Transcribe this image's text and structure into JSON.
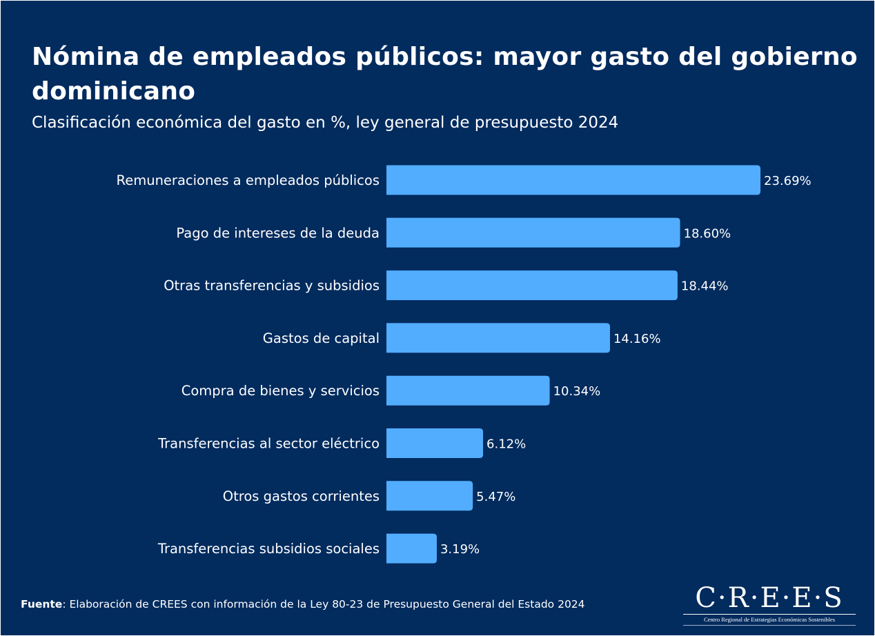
{
  "header": {
    "title": "Nómina de empleados públicos: mayor gasto del gobierno dominicano",
    "subtitle": "Clasificación económica del gasto en %, ley general de presupuesto 2024"
  },
  "chart_data": {
    "type": "bar",
    "orientation": "horizontal",
    "title": "Nómina de empleados públicos: mayor gasto del gobierno dominicano",
    "subtitle": "Clasificación económica del gasto en %, ley general de presupuesto 2024",
    "xlabel": "",
    "ylabel": "",
    "unit": "%",
    "grid": false,
    "legend": "none",
    "categories": [
      "Remuneraciones a empleados públicos",
      "Pago de intereses de la deuda",
      "Otras transferencias y subsidios",
      "Gastos de capital",
      "Compra de bienes y servicios",
      "Transferencias al sector eléctrico",
      "Otros gastos corrientes",
      "Transferencias subsidios sociales"
    ],
    "values": [
      23.69,
      18.6,
      18.44,
      14.16,
      10.34,
      6.12,
      5.47,
      3.19
    ],
    "value_labels": [
      "23.69%",
      "18.60%",
      "18.44%",
      "14.16%",
      "10.34%",
      "6.12%",
      "5.47%",
      "3.19%"
    ],
    "xlim": [
      0,
      23.69
    ],
    "colors": {
      "bar": "#52adff",
      "background": "#022b5e",
      "text": "#ffffff"
    }
  },
  "footer": {
    "source_label": "Fuente",
    "source_text": ": Elaboración de CREES con información de la Ley 80-23 de Presupuesto General del Estado 2024"
  },
  "logo": {
    "mark": "C·R·E·E·S",
    "name": "Centro Regional de Estrategias Económicas Sostenibles"
  }
}
